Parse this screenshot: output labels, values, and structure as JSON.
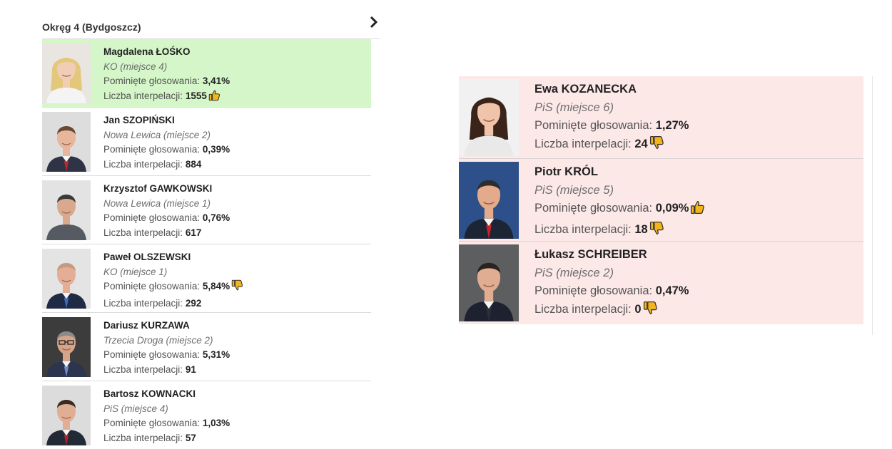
{
  "district_title": "Okręg 4 (Bydgoszcz)",
  "labels": {
    "missed_votes": "Pominięte głosowania: ",
    "interpellations": "Liczba interpelacji: "
  },
  "colors": {
    "good_row": "#d4f6c8",
    "bad_row": "#fde8e8",
    "thumb": "#f2b51c"
  },
  "left_candidates": [
    {
      "name": "Magdalena ŁOŚKO",
      "party": "KO (miejsce 4)",
      "missed": "3,41%",
      "interp": "1555",
      "missed_icon": "",
      "interp_icon": "thumbs-up-icon",
      "highlight": "good",
      "photo": "woman-blonde"
    },
    {
      "name": "Jan SZOPIŃSKI",
      "party": "Nowa Lewica (miejsce 2)",
      "missed": "0,39%",
      "interp": "884",
      "missed_icon": "",
      "interp_icon": "",
      "highlight": "",
      "photo": "man-red-tie"
    },
    {
      "name": "Krzysztof GAWKOWSKI",
      "party": "Nowa Lewica (miejsce 1)",
      "missed": "0,76%",
      "interp": "617",
      "missed_icon": "",
      "interp_icon": "",
      "highlight": "",
      "photo": "man-grey-suit"
    },
    {
      "name": "Paweł OLSZEWSKI",
      "party": "KO (miejsce 1)",
      "missed": "5,84%",
      "interp": "292",
      "missed_icon": "thumbs-down-icon",
      "interp_icon": "",
      "highlight": "",
      "photo": "man-bald-blue-tie"
    },
    {
      "name": "Dariusz KURZAWA",
      "party": "Trzecia Droga (miejsce 2)",
      "missed": "5,31%",
      "interp": "91",
      "missed_icon": "",
      "interp_icon": "",
      "highlight": "",
      "photo": "man-glasses"
    },
    {
      "name": "Bartosz KOWNACKI",
      "party": "PiS (miejsce 4)",
      "missed": "1,03%",
      "interp": "57",
      "missed_icon": "",
      "interp_icon": "",
      "highlight": "",
      "photo": "man-red-tie-dark"
    }
  ],
  "right_candidates": [
    {
      "name": "Ewa KOZANECKA",
      "party": "PiS (miejsce 6)",
      "missed": "1,27%",
      "interp": "24",
      "missed_icon": "",
      "interp_icon": "thumbs-down-icon",
      "photo": "woman-dark-hair"
    },
    {
      "name": "Piotr KRÓL",
      "party": "PiS (miejsce 5)",
      "missed": "0,09%",
      "interp": "18",
      "missed_icon": "thumbs-up-icon",
      "interp_icon": "thumbs-down-icon",
      "photo": "man-red-tie-blue-bg"
    },
    {
      "name": "Łukasz SCHREIBER",
      "party": "PiS (miejsce 2)",
      "missed": "0,47%",
      "interp": "0",
      "missed_icon": "",
      "interp_icon": "thumbs-down-icon",
      "photo": "man-dark-suit"
    }
  ]
}
